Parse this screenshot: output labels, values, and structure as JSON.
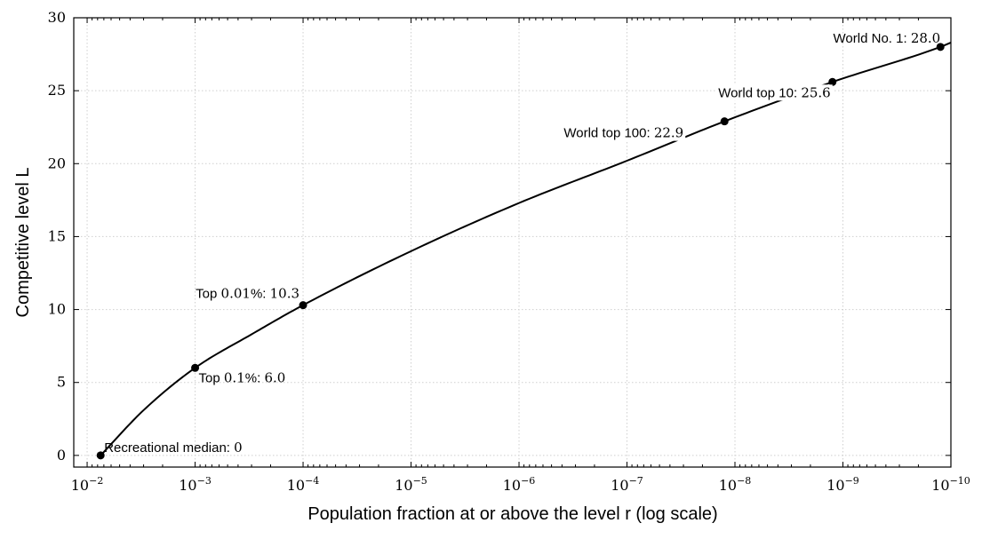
{
  "chart_data": {
    "type": "line",
    "xlabel": "Population fraction at or above the level r (log scale)",
    "ylabel": "Competitive level L",
    "x_scale": "log",
    "x_reversed": true,
    "xlim": [
      0.0133,
      1e-10
    ],
    "ylim": [
      -0.8,
      30
    ],
    "x_ticks": [
      0.01,
      0.001,
      0.0001,
      1e-05,
      1e-06,
      1e-07,
      1e-08,
      1e-09,
      1e-10
    ],
    "x_tick_labels": [
      "10−2",
      "10−3",
      "10−4",
      "10−5",
      "10−6",
      "10−7",
      "10−8",
      "10−9",
      "10−10"
    ],
    "y_ticks": [
      0,
      5,
      10,
      15,
      20,
      25,
      30
    ],
    "y_tick_labels": [
      "0",
      "5",
      "10",
      "15",
      "20",
      "25",
      "30"
    ],
    "grid": true,
    "series": [
      {
        "x": [
          0.0075,
          0.003,
          0.001,
          0.0003,
          0.0001,
          1e-05,
          1e-06,
          1e-07,
          1.25e-08,
          1.25e-09,
          1.25e-10,
          1e-10
        ],
        "y": [
          0,
          3.1,
          6.0,
          8.3,
          10.3,
          14.0,
          17.3,
          20.2,
          22.9,
          25.6,
          28.0,
          28.3
        ]
      }
    ],
    "points": [
      {
        "x": 0.0075,
        "y": 0,
        "label": "Recreational median: ",
        "value": "0"
      },
      {
        "x": 0.001,
        "y": 6.0,
        "label": "Top ",
        "pct": "0.1",
        "value": "6.0"
      },
      {
        "x": 0.0001,
        "y": 10.3,
        "label": "Top ",
        "pct": "0.01",
        "value": "10.3"
      },
      {
        "x": 1.25e-08,
        "y": 22.9,
        "label": "World top 100: ",
        "value": "22.9"
      },
      {
        "x": 1.25e-09,
        "y": 25.6,
        "label": "World top 10: ",
        "value": "25.6"
      },
      {
        "x": 1.25e-10,
        "y": 28.0,
        "label": "World No. 1: ",
        "value": "28.0"
      }
    ]
  }
}
